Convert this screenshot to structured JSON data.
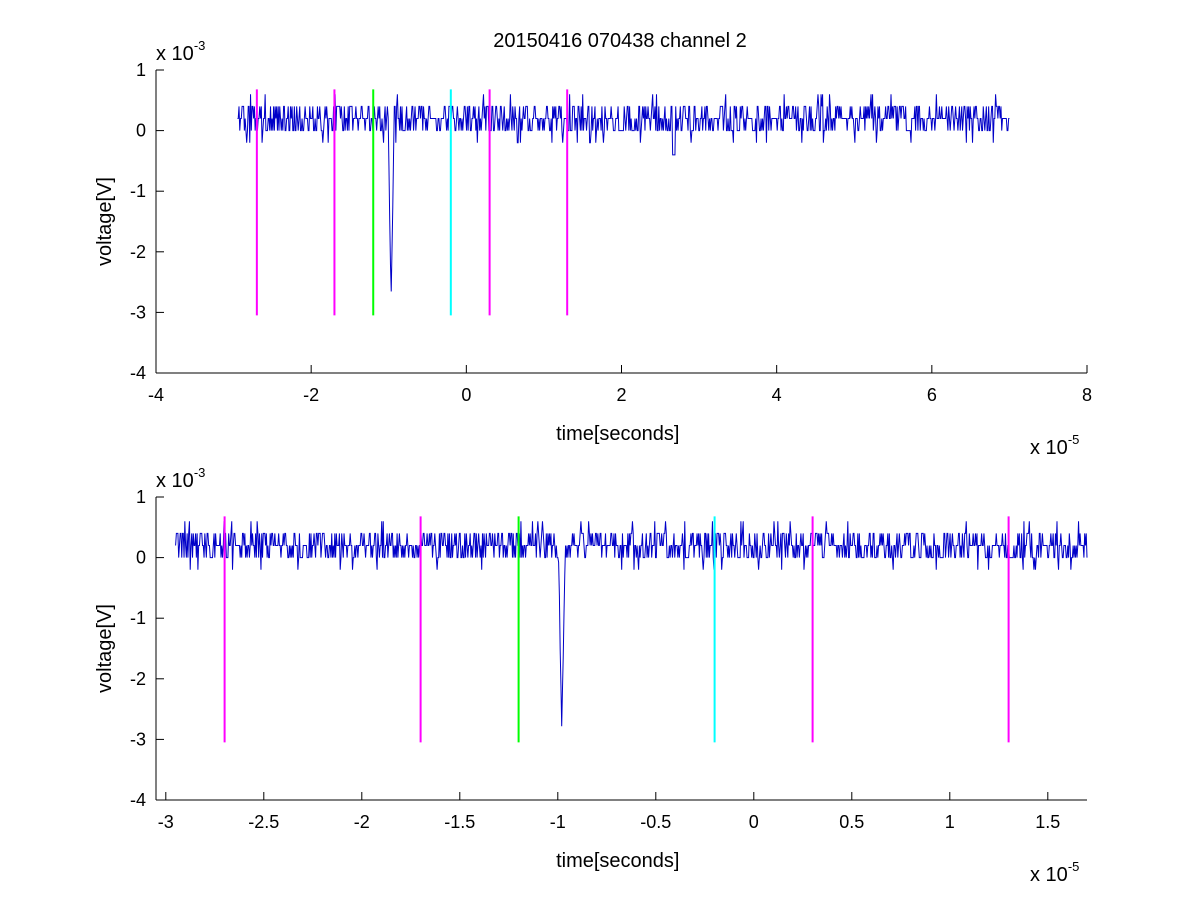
{
  "figure": {
    "title": "20150416 070438 channel 2"
  },
  "chart_data": [
    {
      "type": "line",
      "title": "20150416 070438 channel 2",
      "xlabel": "time[seconds]",
      "ylabel": "voltage[V]",
      "x_multiplier": {
        "base": "x 10",
        "exp": "-5"
      },
      "y_multiplier": {
        "base": "x 10",
        "exp": "-3"
      },
      "xlim": [
        -4,
        8
      ],
      "ylim": [
        -4,
        1
      ],
      "xticks": [
        "-4",
        "-2",
        "0",
        "2",
        "4",
        "6",
        "8"
      ],
      "yticks": [
        "-4",
        "-3",
        "-2",
        "-1",
        "0",
        "1"
      ],
      "grid": false,
      "signal": {
        "color": "#0000c8",
        "x_range": [
          -2.95,
          7.0
        ],
        "baseline": 0.2,
        "noise_amplitude": 0.2,
        "spike": {
          "x": -0.97,
          "min": -2.8
        },
        "minor_dip": {
          "x": 2.67,
          "min": -0.4
        }
      },
      "markers": [
        {
          "x": -2.7,
          "color": "#ff00ff",
          "ymin": -3.05,
          "ymax": 0.68
        },
        {
          "x": -1.7,
          "color": "#ff00ff",
          "ymin": -3.05,
          "ymax": 0.68
        },
        {
          "x": -1.2,
          "color": "#00ff00",
          "ymin": -3.05,
          "ymax": 0.68
        },
        {
          "x": -0.2,
          "color": "#00ffff",
          "ymin": -3.05,
          "ymax": 0.68
        },
        {
          "x": 0.3,
          "color": "#ff00ff",
          "ymin": -3.05,
          "ymax": 0.68
        },
        {
          "x": 1.3,
          "color": "#ff00ff",
          "ymin": -3.05,
          "ymax": 0.68
        }
      ]
    },
    {
      "type": "line",
      "title": "",
      "xlabel": "time[seconds]",
      "ylabel": "voltage[V]",
      "x_multiplier": {
        "base": "x 10",
        "exp": "-5"
      },
      "y_multiplier": {
        "base": "x 10",
        "exp": "-3"
      },
      "xlim": [
        -3.05,
        1.7
      ],
      "ylim": [
        -4,
        1
      ],
      "xticks": [
        "-3",
        "-2.5",
        "-2",
        "-1.5",
        "-1",
        "-0.5",
        "0",
        "0.5",
        "1",
        "1.5"
      ],
      "yticks": [
        "-4",
        "-3",
        "-2",
        "-1",
        "0",
        "1"
      ],
      "grid": false,
      "signal": {
        "color": "#0000c8",
        "x_range": [
          -2.95,
          1.7
        ],
        "baseline": 0.2,
        "noise_amplitude": 0.2,
        "spike": {
          "x": -0.98,
          "min": -2.8
        }
      },
      "markers": [
        {
          "x": -2.7,
          "color": "#ff00ff",
          "ymin": -3.05,
          "ymax": 0.68
        },
        {
          "x": -1.7,
          "color": "#ff00ff",
          "ymin": -3.05,
          "ymax": 0.68
        },
        {
          "x": -1.2,
          "color": "#00ff00",
          "ymin": -3.05,
          "ymax": 0.68
        },
        {
          "x": -0.2,
          "color": "#00ffff",
          "ymin": -3.05,
          "ymax": 0.68
        },
        {
          "x": 0.3,
          "color": "#ff00ff",
          "ymin": -3.05,
          "ymax": 0.68
        },
        {
          "x": 1.3,
          "color": "#ff00ff",
          "ymin": -3.05,
          "ymax": 0.68
        }
      ]
    }
  ]
}
